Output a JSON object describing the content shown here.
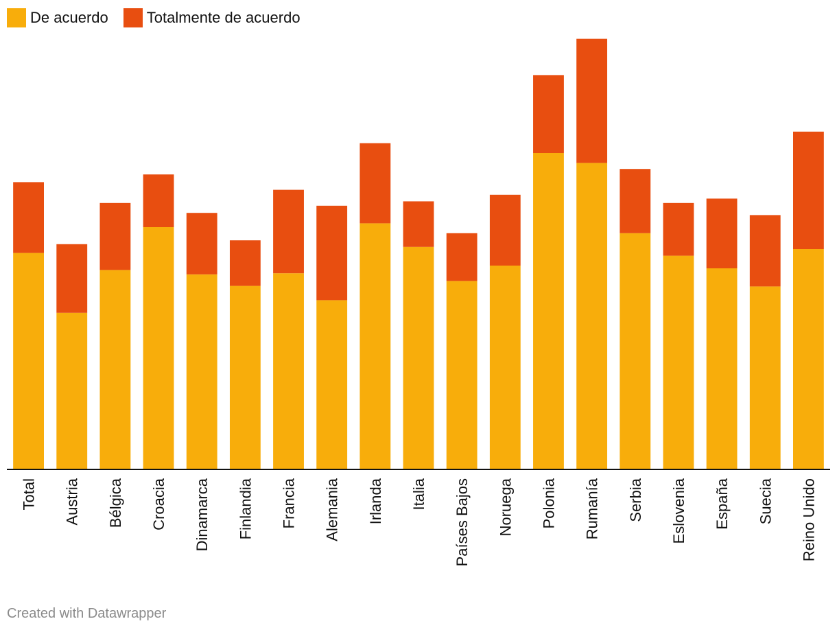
{
  "legend": {
    "items": [
      {
        "label": "De acuerdo",
        "color": "#f8ad0b"
      },
      {
        "label": "Totalmente de acuerdo",
        "color": "#e84e10"
      }
    ]
  },
  "footer": {
    "credit": "Created with Datawrapper"
  },
  "chart_data": {
    "type": "bar",
    "stacked": true,
    "title": "",
    "xlabel": "",
    "ylabel": "",
    "ylim": [
      0,
      80
    ],
    "grid": false,
    "legend_position": "top-left",
    "categories": [
      "Total",
      "Austria",
      "Bélgica",
      "Croacia",
      "Dinamarca",
      "Finlandia",
      "Francia",
      "Alemania",
      "Irlanda",
      "Italia",
      "Países Bajos",
      "Noruega",
      "Polonia",
      "Rumanía",
      "Serbia",
      "Eslovenia",
      "España",
      "Suecia",
      "Reino Unido"
    ],
    "series": [
      {
        "name": "De acuerdo",
        "color": "#f8ad0b",
        "values": [
          39.3,
          28.4,
          36.2,
          44.0,
          35.4,
          33.3,
          35.6,
          30.7,
          44.7,
          40.4,
          34.2,
          37.0,
          57.5,
          55.7,
          42.9,
          38.8,
          36.5,
          33.2,
          40.0
        ]
      },
      {
        "name": "Totalmente de acuerdo",
        "color": "#e84e10",
        "values": [
          12.9,
          12.5,
          12.2,
          9.6,
          11.2,
          8.3,
          15.2,
          17.2,
          14.6,
          8.3,
          8.7,
          12.9,
          14.2,
          22.6,
          11.7,
          9.6,
          12.7,
          13.0,
          21.4
        ]
      }
    ]
  }
}
